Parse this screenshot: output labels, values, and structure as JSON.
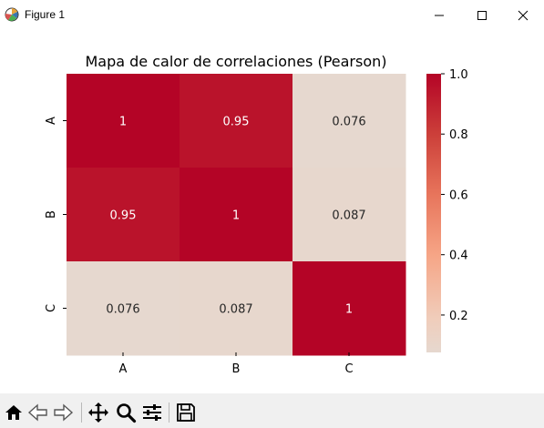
{
  "window": {
    "title": "Figure 1",
    "icons": {
      "app": "matplotlib-icon",
      "minimize": "minimize-icon",
      "maximize": "maximize-icon",
      "close": "close-icon"
    }
  },
  "chart_data": {
    "type": "heatmap",
    "title": "Mapa de calor de correlaciones (Pearson)",
    "xlabel": "",
    "ylabel": "",
    "x_categories": [
      "A",
      "B",
      "C"
    ],
    "y_categories": [
      "A",
      "B",
      "C"
    ],
    "values": [
      [
        1,
        0.95,
        0.076
      ],
      [
        0.95,
        1,
        0.087
      ],
      [
        0.076,
        0.087,
        1
      ]
    ],
    "cell_labels": [
      [
        "1",
        "0.95",
        "0.076"
      ],
      [
        "0.95",
        "1",
        "0.087"
      ],
      [
        "0.076",
        "0.087",
        "1"
      ]
    ],
    "colorbar": {
      "range": [
        0.076,
        1.0
      ],
      "ticks": [
        1.0,
        0.8,
        0.6,
        0.4,
        0.2
      ],
      "tick_labels": [
        "1.0",
        "0.8",
        "0.6",
        "0.4",
        "0.2"
      ],
      "colormap": "coolwarm (upper half)",
      "color_low": "#e6d8cf",
      "color_high": "#b40426"
    },
    "grid": false,
    "legend": "colorbar-right"
  },
  "toolbar": {
    "items": [
      {
        "name": "home-icon"
      },
      {
        "name": "back-icon"
      },
      {
        "name": "forward-icon"
      },
      {
        "name": "pan-icon"
      },
      {
        "name": "zoom-icon"
      },
      {
        "name": "configure-subplots-icon"
      },
      {
        "name": "save-icon"
      }
    ]
  }
}
